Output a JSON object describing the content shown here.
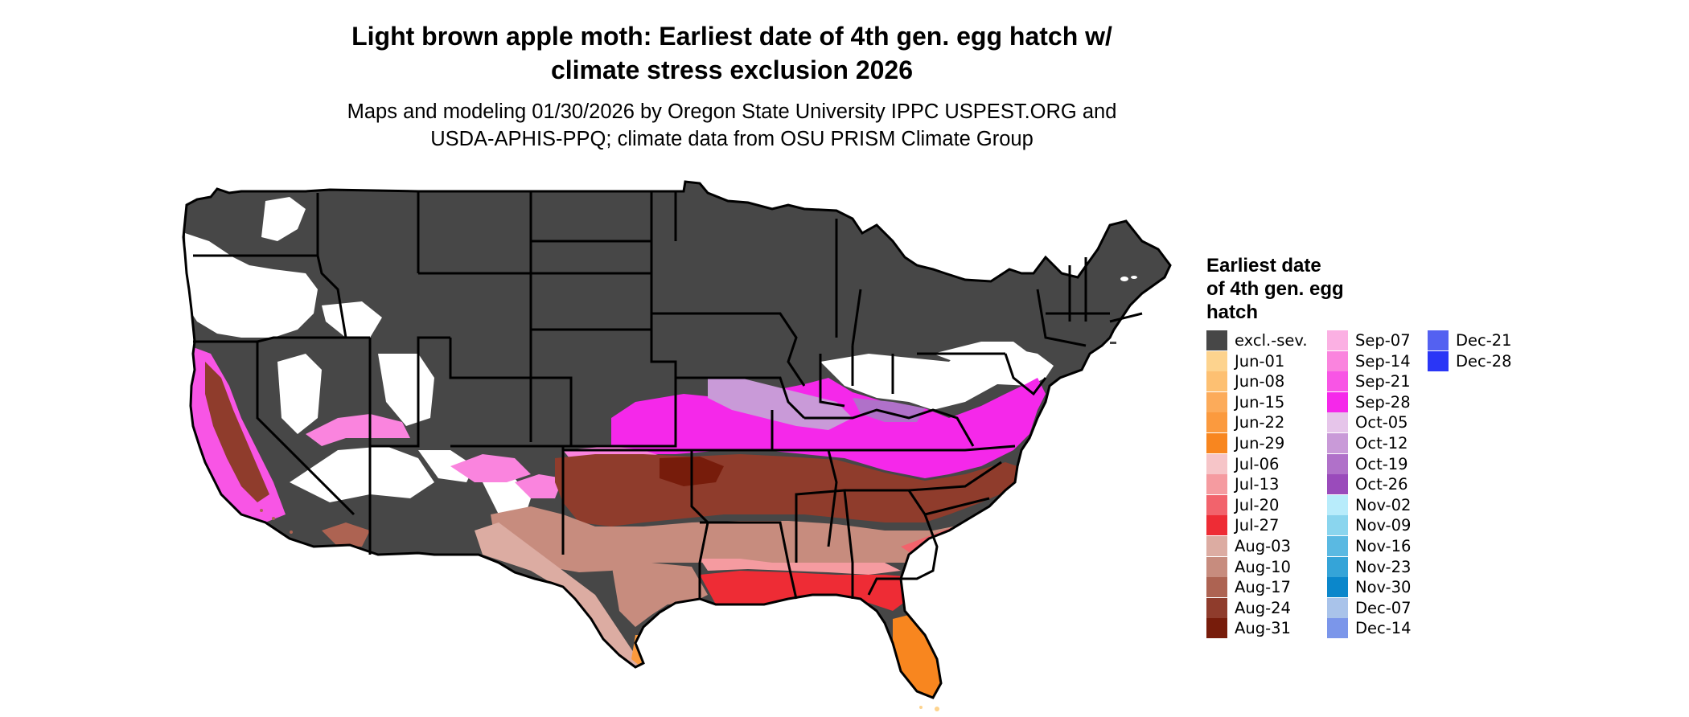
{
  "title": {
    "line1": "Light brown apple moth: Earliest date of 4th gen. egg hatch w/",
    "line2": "climate stress exclusion 2026"
  },
  "subtitle": {
    "line1": "Maps and modeling 01/30/2026 by Oregon State University IPPC USPEST.ORG and",
    "line2": "USDA-APHIS-PPQ; climate data from OSU PRISM Climate Group"
  },
  "legend": {
    "title_lines": [
      "Earliest date",
      "of 4th gen. egg",
      "hatch"
    ],
    "columns": [
      [
        {
          "label": "excl.-sev.",
          "color": "#474747"
        },
        {
          "label": "Jun-01",
          "color": "#fdd38e"
        },
        {
          "label": "Jun-08",
          "color": "#fdc072"
        },
        {
          "label": "Jun-15",
          "color": "#fcab5a"
        },
        {
          "label": "Jun-22",
          "color": "#fb9a3e"
        },
        {
          "label": "Jun-29",
          "color": "#f8861f"
        },
        {
          "label": "Jul-06",
          "color": "#f6c5c8"
        },
        {
          "label": "Jul-13",
          "color": "#f59ba0"
        },
        {
          "label": "Jul-20",
          "color": "#f2636c"
        },
        {
          "label": "Jul-27",
          "color": "#ee2c35"
        },
        {
          "label": "Aug-03",
          "color": "#dcaca2"
        },
        {
          "label": "Aug-10",
          "color": "#c78c7e"
        },
        {
          "label": "Aug-17",
          "color": "#ad6352"
        },
        {
          "label": "Aug-24",
          "color": "#8f3c2c"
        },
        {
          "label": "Aug-31",
          "color": "#771c0b"
        }
      ],
      [
        {
          "label": "Sep-07",
          "color": "#fbb0e3"
        },
        {
          "label": "Sep-14",
          "color": "#fa84de"
        },
        {
          "label": "Sep-21",
          "color": "#f855e5"
        },
        {
          "label": "Sep-28",
          "color": "#f528ea"
        },
        {
          "label": "Oct-05",
          "color": "#e6c5ea"
        },
        {
          "label": "Oct-12",
          "color": "#c99ad8"
        },
        {
          "label": "Oct-19",
          "color": "#b071c9"
        },
        {
          "label": "Oct-26",
          "color": "#9a4bbb"
        },
        {
          "label": "Nov-02",
          "color": "#b8ecfb"
        },
        {
          "label": "Nov-09",
          "color": "#8ad5ee"
        },
        {
          "label": "Nov-16",
          "color": "#5ab9e2"
        },
        {
          "label": "Nov-23",
          "color": "#35a4d8"
        },
        {
          "label": "Nov-30",
          "color": "#0b87cb"
        },
        {
          "label": "Dec-07",
          "color": "#a9c3ea"
        },
        {
          "label": "Dec-14",
          "color": "#7b96ea"
        }
      ],
      [
        {
          "label": "Dec-21",
          "color": "#5461f1"
        },
        {
          "label": "Dec-28",
          "color": "#2a36f6"
        }
      ]
    ]
  }
}
